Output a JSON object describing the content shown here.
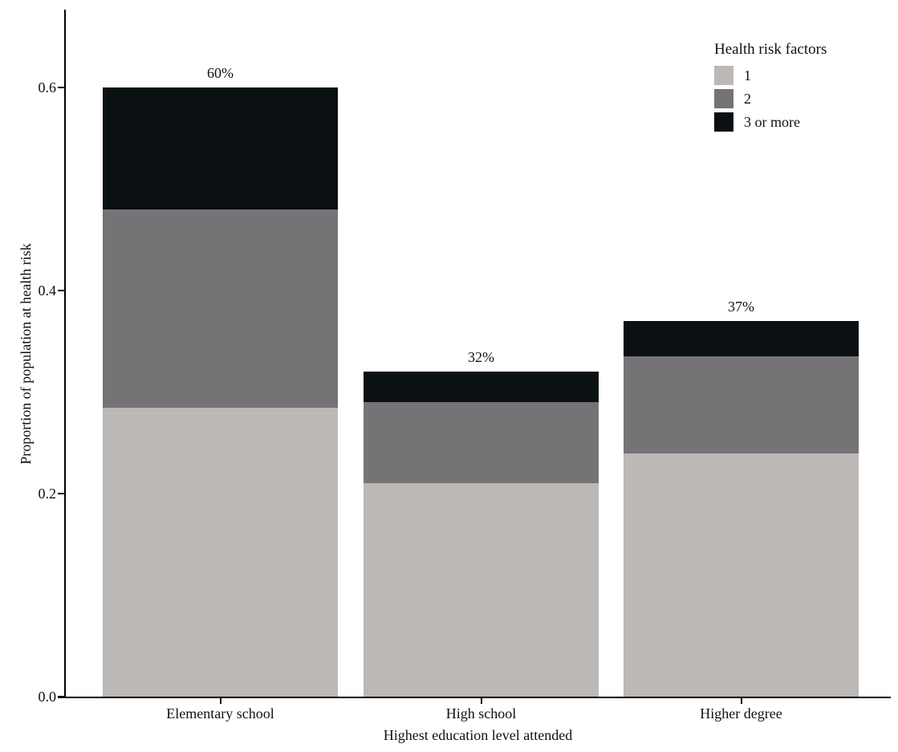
{
  "chart_data": {
    "type": "bar",
    "stacked": true,
    "title": "",
    "xlabel": "Highest education level attended",
    "ylabel": "Proportion of population at health risk",
    "categories": [
      "Elementary school",
      "High school",
      "Higher degree"
    ],
    "series": [
      {
        "name": "1",
        "color": "#bcb8b6",
        "values": [
          0.285,
          0.21,
          0.24
        ]
      },
      {
        "name": "2",
        "color": "#767376",
        "values": [
          0.195,
          0.08,
          0.095
        ]
      },
      {
        "name": "3 or more",
        "color": "#0b1013",
        "values": [
          0.12,
          0.03,
          0.035
        ]
      }
    ],
    "bar_total_labels": [
      "60%",
      "32%",
      "37%"
    ],
    "y_ticks": [
      0.0,
      0.2,
      0.4,
      0.6
    ],
    "y_tick_labels": [
      "0.0",
      "0.2",
      "0.4",
      "0.6"
    ],
    "ylim": [
      0,
      0.677
    ],
    "grid": false,
    "legend_title": "Health risk factors",
    "legend_position": "top-right",
    "axis_color": "#000000",
    "text_color": "#111111"
  }
}
